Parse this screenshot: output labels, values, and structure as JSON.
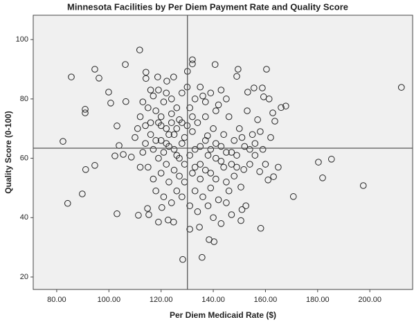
{
  "chart_data": {
    "type": "scatter",
    "title": "Minnesota Facilities by Per Diem Payment Rate and Quality Score",
    "x_label": "Per Diem Medicaid Rate ($)",
    "y_label": "Quality Score (0-100)",
    "x": [
      111.8,
      85.6,
      94.6,
      96.2,
      106.3,
      99.9,
      100.7,
      90.9,
      90.9,
      82.4,
      84.2,
      89.8,
      91.1,
      94.6,
      103.1,
      103.9,
      102.3,
      103.1,
      105.5,
      108.6,
      106.5,
      212.1,
      197.5,
      185.3,
      181.9,
      180.3,
      170.7,
      167.8,
      166,
      162.8,
      163.6,
      160.4,
      158.8,
      155.6,
      149.5,
      149,
      153.2,
      159.3,
      161.4,
      158.2,
      164.9,
      163.1,
      161,
      157.8,
      154,
      151.7,
      150.6,
      151,
      152.5,
      150.6,
      137.8,
      128.3,
      135.7,
      138.4,
      134.7,
      131,
      140.3,
      124.8,
      122.7,
      119,
      115.3,
      111.3,
      114.8,
      120.3,
      132,
      132,
      140.7,
      130.1,
      124.8,
      118.7,
      114.2,
      114.2,
      116,
      122.2,
      112,
      114,
      116,
      118,
      119,
      120,
      121,
      122,
      123,
      124,
      125,
      126,
      127,
      128,
      129,
      131,
      132,
      133,
      134,
      135,
      136,
      137,
      138,
      139,
      140,
      141,
      142,
      143,
      144,
      145,
      146,
      147,
      148,
      149,
      150,
      152,
      153,
      155,
      156,
      157,
      159,
      160,
      162,
      113,
      115,
      117,
      118,
      120,
      121,
      122,
      123,
      124,
      125,
      126,
      127,
      128,
      129,
      131,
      132,
      133,
      134,
      135,
      136,
      137,
      138,
      139,
      140,
      141,
      142,
      143,
      144,
      145,
      146,
      147,
      148,
      110,
      111,
      113,
      115,
      117,
      119,
      120,
      122,
      124,
      126,
      128,
      130,
      133,
      135,
      137,
      139,
      141,
      143,
      145,
      117,
      119,
      121,
      123,
      125,
      127,
      129,
      131,
      133,
      135,
      137,
      139,
      141,
      143,
      145,
      147,
      149,
      151,
      154,
      156,
      158,
      112,
      114,
      116,
      118,
      120,
      122,
      124,
      126,
      128,
      130,
      132
    ],
    "values": [
      96.5,
      87.4,
      90,
      87,
      91.6,
      82.3,
      78.6,
      76.5,
      75.3,
      65.7,
      44.8,
      48,
      56.2,
      57.6,
      70.9,
      64.3,
      60.8,
      41.3,
      61.3,
      60.4,
      79.1,
      83.9,
      50.8,
      59.7,
      53.4,
      58.7,
      47.1,
      77.6,
      77.1,
      75.3,
      72.5,
      90,
      83.7,
      83.7,
      90,
      87.6,
      82.3,
      80.7,
      80,
      36.4,
      57,
      53.8,
      52.7,
      55.5,
      58,
      56.2,
      50.3,
      42.7,
      44,
      39,
      67.6,
      25.9,
      26.6,
      32.6,
      36.8,
      36.1,
      31.9,
      38.5,
      39.2,
      38.5,
      41,
      40.8,
      43.1,
      43.4,
      93.2,
      91.8,
      91.6,
      89.3,
      87.4,
      87.4,
      89,
      86.9,
      83,
      86,
      74,
      71,
      68,
      76,
      72,
      66,
      79,
      70,
      64,
      75,
      68,
      61,
      73,
      65,
      58,
      77,
      69,
      63,
      72,
      58,
      81,
      74,
      61,
      55,
      70,
      65,
      78,
      59,
      68,
      52,
      74,
      62,
      66,
      57,
      70,
      64,
      76,
      68,
      61,
      73,
      63,
      58,
      67,
      62,
      57,
      53,
      49,
      55,
      47,
      58,
      52,
      45,
      56,
      49,
      54,
      47,
      52,
      44,
      55,
      49,
      42,
      53,
      47,
      56,
      44,
      50,
      40,
      53,
      46,
      38,
      57,
      45,
      49,
      41,
      54,
      67,
      70,
      79,
      77,
      81,
      83,
      74,
      82,
      80,
      77,
      82,
      84,
      80,
      84,
      79,
      82,
      76,
      83,
      80,
      63,
      60,
      62,
      68,
      63,
      60,
      67,
      61,
      57,
      64,
      66,
      63,
      60,
      64,
      62,
      58,
      61,
      67,
      63,
      65,
      69,
      57,
      65,
      72,
      66,
      71,
      65,
      72,
      70,
      72,
      71,
      74
    ],
    "marker_color": "#222222",
    "background": "#f0f0f0",
    "reference_lines": {
      "x": 130.1,
      "y": 63.4,
      "color": "#555555"
    },
    "xlim": [
      71,
      216.4
    ],
    "ylim": [
      15.8,
      108.2
    ],
    "xticks": [
      {
        "value": 80,
        "label": "80.00"
      },
      {
        "value": 100,
        "label": "100.00"
      },
      {
        "value": 120,
        "label": "120.00"
      },
      {
        "value": 140,
        "label": "140.00"
      },
      {
        "value": 160,
        "label": "160.00"
      },
      {
        "value": 180,
        "label": "180.00"
      },
      {
        "value": 200,
        "label": "200.00"
      }
    ],
    "yticks": [
      20,
      40,
      60,
      80,
      100
    ],
    "grid": false
  }
}
